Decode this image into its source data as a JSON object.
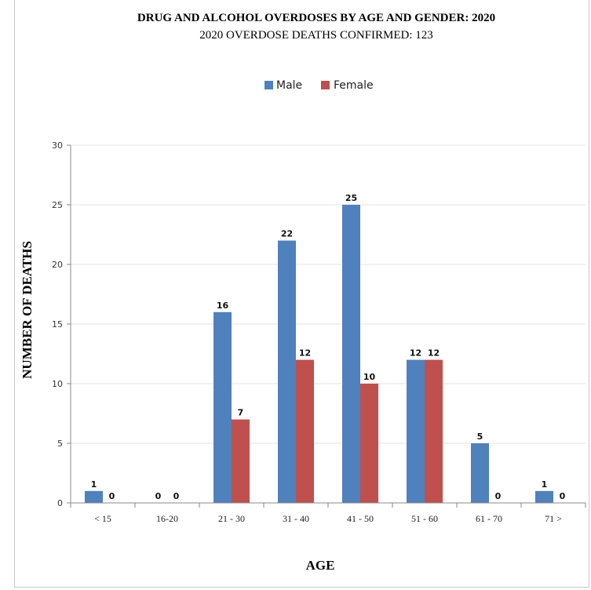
{
  "chart_data": {
    "type": "bar",
    "title": "DRUG AND ALCOHOL OVERDOSES BY AGE AND GENDER: 2020",
    "subtitle": "2020 OVERDOSE DEATHS CONFIRMED: 123",
    "xlabel": "AGE",
    "ylabel": "NUMBER OF DEATHS",
    "categories": [
      "< 15",
      "16-20",
      "21 - 30",
      "31 - 40",
      "41 - 50",
      "51 - 60",
      "61 - 70",
      "71 >"
    ],
    "series": [
      {
        "name": "Male",
        "color": "#4f81bd",
        "values": [
          1,
          0,
          16,
          22,
          25,
          12,
          5,
          1
        ]
      },
      {
        "name": "Female",
        "color": "#c0504d",
        "values": [
          0,
          0,
          7,
          12,
          10,
          12,
          0,
          0
        ]
      }
    ],
    "ylim": [
      0,
      30
    ],
    "yticks": [
      0,
      5,
      10,
      15,
      20,
      25,
      30
    ],
    "grid": true,
    "legend_position": "top-center"
  }
}
